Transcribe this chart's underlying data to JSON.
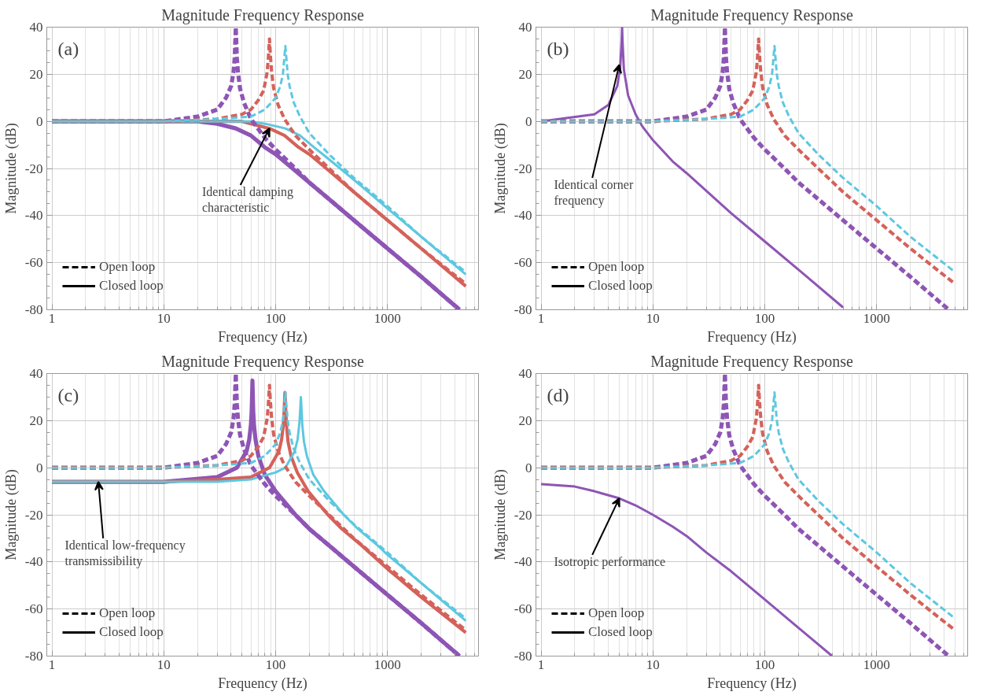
{
  "chart_data": [
    {
      "type": "line",
      "title": "Magnitude Frequency Response",
      "xlabel": "Frequency (Hz)",
      "ylabel": "Magnitude (dB)",
      "log": "x",
      "xlim": [
        0.9,
        6500
      ],
      "ylim": [
        -80,
        40
      ],
      "xticks": [
        1,
        10,
        100,
        1000
      ],
      "yticks": [
        -80,
        -60,
        -40,
        -20,
        0,
        20,
        40
      ],
      "grid": true,
      "legend": "bottom left",
      "annotations": [
        "(a)",
        {
          "text": "Identical damping\ncharacteristic",
          "x": 88,
          "y": -3
        }
      ],
      "series": [
        {
          "color": "#8e55b5",
          "line_style": "solid",
          "x": [
            1,
            10,
            20,
            30,
            44,
            60,
            80,
            100,
            150,
            200,
            300,
            500,
            1000,
            2000,
            4400
          ],
          "values": [
            0,
            0,
            0,
            -1,
            -3,
            -6,
            -11,
            -14,
            -21,
            -26,
            -33,
            -42,
            -54,
            -66,
            -80
          ]
        },
        {
          "color": "#d4625a",
          "line_style": "solid",
          "x": [
            1,
            10,
            30,
            50,
            60,
            88,
            120,
            160,
            200,
            300,
            500,
            1000,
            2000,
            5000
          ],
          "values": [
            0,
            0,
            0,
            0,
            -1,
            -3,
            -6,
            -11,
            -14,
            -21,
            -30,
            -42,
            -54,
            -70
          ]
        },
        {
          "color": "#5cc8e0",
          "line_style": "solid",
          "x": [
            1,
            10,
            30,
            60,
            80,
            122,
            165,
            220,
            280,
            400,
            600,
            1000,
            2000,
            5000
          ],
          "values": [
            0,
            0,
            0,
            0,
            -1,
            -3,
            -6,
            -11,
            -15,
            -21,
            -28,
            -37,
            -49,
            -65
          ]
        },
        {
          "color": "#8e55b5",
          "line_style": "dashed",
          "x": [
            1,
            10,
            20,
            30,
            36,
            40,
            42,
            43,
            44,
            45,
            46,
            48,
            52,
            60,
            80,
            100,
            150,
            200,
            300,
            500,
            1000,
            2000,
            4400
          ],
          "values": [
            0,
            0,
            2,
            5,
            10,
            15,
            21,
            27,
            40,
            27,
            21,
            14,
            8,
            1,
            -7,
            -12,
            -20,
            -26,
            -33,
            -42,
            -54,
            -66,
            -80
          ]
        },
        {
          "color": "#d4625a",
          "line_style": "dashed",
          "x": [
            1,
            10,
            30,
            50,
            60,
            70,
            78,
            84,
            86,
            88,
            90,
            92,
            96,
            105,
            120,
            150,
            200,
            300,
            500,
            1000,
            2000,
            5000
          ],
          "values": [
            0,
            0,
            1,
            3,
            5,
            9,
            13,
            21,
            27,
            35,
            27,
            21,
            14,
            7,
            1,
            -6,
            -12,
            -20,
            -30,
            -42,
            -54,
            -69
          ]
        },
        {
          "color": "#5cc8e0",
          "line_style": "dashed",
          "x": [
            1,
            10,
            30,
            60,
            80,
            100,
            110,
            116,
            119,
            122,
            125,
            128,
            133,
            145,
            165,
            200,
            300,
            500,
            1000,
            2000,
            5000
          ],
          "values": [
            0,
            0,
            1,
            2,
            5,
            10,
            15,
            20,
            26,
            32,
            26,
            20,
            15,
            8,
            2,
            -5,
            -14,
            -24,
            -36,
            -49,
            -64
          ]
        },
        {
          "name": "Open loop",
          "color": "#000000",
          "line_style": "dashed"
        },
        {
          "name": "Closed loop",
          "color": "#000000",
          "line_style": "solid"
        }
      ]
    },
    {
      "type": "line",
      "title": "Magnitude Frequency Response",
      "xlabel": "Frequency (Hz)",
      "ylabel": "Magnitude (dB)",
      "log": "x",
      "xlim": [
        0.9,
        6500
      ],
      "ylim": [
        -80,
        40
      ],
      "xticks": [
        1,
        10,
        100,
        1000
      ],
      "yticks": [
        -80,
        -60,
        -40,
        -20,
        0,
        20,
        40
      ],
      "grid": true,
      "legend": "bottom left",
      "annotations": [
        "(b)",
        {
          "text": "Identical corner\nfrequency",
          "x": 5,
          "y": 24
        }
      ],
      "series": [
        {
          "color": "#8e55b5",
          "line_style": "solid",
          "x": [
            1,
            3,
            4,
            4.8,
            5.1,
            5.25,
            5.3,
            5.35,
            5.5,
            6,
            7,
            8,
            10,
            15,
            20,
            50,
            100,
            200,
            500
          ],
          "values": [
            0,
            3,
            7,
            15,
            23,
            34,
            40,
            34,
            22,
            11,
            3,
            -2,
            -8,
            -17,
            -22,
            -39,
            -51,
            -63,
            -79
          ]
        },
        {
          "color": "#8e55b5",
          "line_style": "dashed",
          "x": [
            1,
            10,
            20,
            30,
            36,
            40,
            42,
            43,
            44,
            45,
            46,
            48,
            52,
            60,
            80,
            100,
            150,
            200,
            300,
            500,
            1000,
            2000,
            4400
          ],
          "values": [
            0,
            0,
            2,
            5,
            10,
            15,
            21,
            27,
            40,
            27,
            21,
            14,
            8,
            1,
            -7,
            -12,
            -20,
            -26,
            -33,
            -42,
            -54,
            -66,
            -80
          ]
        },
        {
          "color": "#d4625a",
          "line_style": "dashed",
          "x": [
            1,
            10,
            30,
            50,
            60,
            70,
            78,
            84,
            86,
            88,
            90,
            92,
            96,
            105,
            120,
            150,
            200,
            300,
            500,
            1000,
            2000,
            5000
          ],
          "values": [
            0,
            0,
            1,
            3,
            5,
            9,
            13,
            21,
            27,
            35,
            27,
            21,
            14,
            7,
            1,
            -6,
            -12,
            -20,
            -30,
            -42,
            -54,
            -69
          ]
        },
        {
          "color": "#5cc8e0",
          "line_style": "dashed",
          "x": [
            1,
            10,
            30,
            60,
            80,
            100,
            110,
            116,
            119,
            122,
            125,
            128,
            133,
            145,
            165,
            200,
            300,
            500,
            1000,
            2000,
            5000
          ],
          "values": [
            0,
            0,
            1,
            2,
            5,
            10,
            15,
            20,
            26,
            32,
            26,
            20,
            15,
            8,
            2,
            -5,
            -14,
            -24,
            -36,
            -49,
            -64
          ]
        },
        {
          "name": "Open loop",
          "color": "#000000",
          "line_style": "dashed"
        },
        {
          "name": "Closed loop",
          "color": "#000000",
          "line_style": "solid"
        }
      ]
    },
    {
      "type": "line",
      "title": "Magnitude Frequency Response",
      "xlabel": "Frequency (Hz)",
      "ylabel": "Magnitude (dB)",
      "log": "x",
      "xlim": [
        0.9,
        6500
      ],
      "ylim": [
        -80,
        40
      ],
      "xticks": [
        1,
        10,
        100,
        1000
      ],
      "yticks": [
        -80,
        -60,
        -40,
        -20,
        0,
        20,
        40
      ],
      "grid": true,
      "legend": "bottom left",
      "annotations": [
        "(c)",
        {
          "text": "Identical low-frequency\ntransmissibility",
          "x": 2.6,
          "y": -6
        }
      ],
      "series": [
        {
          "color": "#8e55b5",
          "line_style": "solid",
          "x": [
            1,
            10,
            30,
            45,
            55,
            58,
            60,
            61,
            62,
            63,
            64,
            66,
            70,
            80,
            100,
            150,
            200,
            300,
            500,
            1000,
            2000,
            4400
          ],
          "values": [
            -6,
            -6,
            -4,
            0,
            7,
            12,
            18,
            24,
            37,
            24,
            18,
            12,
            5,
            -3,
            -10,
            -20,
            -26,
            -33,
            -42,
            -54,
            -66,
            -80
          ]
        },
        {
          "color": "#d4625a",
          "line_style": "solid",
          "x": [
            1,
            10,
            30,
            60,
            88,
            107,
            113,
            117,
            119,
            121,
            123,
            125,
            129,
            137,
            156,
            195,
            293,
            391,
            586,
            1000,
            2000,
            5000
          ],
          "values": [
            -6,
            -6,
            -5,
            -4,
            0,
            7,
            12,
            18,
            24,
            32,
            24,
            18,
            11,
            5,
            -2,
            -10,
            -20,
            -26,
            -33,
            -43,
            -55,
            -70
          ]
        },
        {
          "color": "#5cc8e0",
          "line_style": "solid",
          "x": [
            1,
            10,
            30,
            60,
            100,
            122,
            148,
            157,
            163,
            165,
            168,
            171,
            173,
            179,
            190,
            217,
            271,
            406,
            543,
            814,
            1000,
            2000,
            5000
          ],
          "values": [
            -6,
            -6,
            -6,
            -5,
            -2,
            0,
            7,
            12,
            19,
            23,
            30,
            23,
            18,
            11,
            5,
            -3,
            -10,
            -20,
            -26,
            -33,
            -37,
            -49,
            -65
          ]
        },
        {
          "color": "#8e55b5",
          "line_style": "dashed",
          "x": [
            1,
            10,
            20,
            30,
            36,
            40,
            42,
            43,
            44,
            45,
            46,
            48,
            52,
            60,
            80,
            100,
            150,
            200,
            300,
            500,
            1000,
            2000,
            4400
          ],
          "values": [
            0,
            0,
            2,
            5,
            10,
            15,
            21,
            27,
            40,
            27,
            21,
            14,
            8,
            1,
            -7,
            -12,
            -20,
            -26,
            -33,
            -42,
            -54,
            -66,
            -80
          ]
        },
        {
          "color": "#d4625a",
          "line_style": "dashed",
          "x": [
            1,
            10,
            30,
            50,
            60,
            70,
            78,
            84,
            86,
            88,
            90,
            92,
            96,
            105,
            120,
            150,
            200,
            300,
            500,
            1000,
            2000,
            5000
          ],
          "values": [
            0,
            0,
            1,
            3,
            5,
            9,
            13,
            21,
            27,
            35,
            27,
            21,
            14,
            7,
            1,
            -6,
            -12,
            -20,
            -30,
            -42,
            -54,
            -69
          ]
        },
        {
          "color": "#5cc8e0",
          "line_style": "dashed",
          "x": [
            1,
            10,
            30,
            60,
            80,
            100,
            110,
            116,
            119,
            122,
            125,
            128,
            133,
            145,
            165,
            200,
            300,
            500,
            1000,
            2000,
            5000
          ],
          "values": [
            0,
            0,
            1,
            2,
            5,
            10,
            15,
            20,
            26,
            32,
            26,
            20,
            15,
            8,
            2,
            -5,
            -14,
            -24,
            -36,
            -49,
            -64
          ]
        },
        {
          "name": "Open loop",
          "color": "#000000",
          "line_style": "dashed"
        },
        {
          "name": "Closed loop",
          "color": "#000000",
          "line_style": "solid"
        }
      ]
    },
    {
      "type": "line",
      "title": "Magnitude Frequency Response",
      "xlabel": "Frequency (Hz)",
      "ylabel": "Magnitude (dB)",
      "log": "x",
      "xlim": [
        0.9,
        6500
      ],
      "ylim": [
        -80,
        40
      ],
      "xticks": [
        1,
        10,
        100,
        1000
      ],
      "yticks": [
        -80,
        -60,
        -40,
        -20,
        0,
        20,
        40
      ],
      "grid": true,
      "legend": "bottom left",
      "annotations": [
        "(d)",
        {
          "text": "Isotropic performance",
          "x": 5,
          "y": -13
        }
      ],
      "series": [
        {
          "color": "#8e55b5",
          "line_style": "solid",
          "x": [
            1,
            2,
            3,
            5,
            7,
            10,
            15,
            20,
            30,
            50,
            100,
            200,
            400
          ],
          "values": [
            -7,
            -8,
            -10,
            -13,
            -16,
            -20,
            -25,
            -29,
            -36,
            -44,
            -56,
            -68,
            -80
          ]
        },
        {
          "color": "#8e55b5",
          "line_style": "dashed",
          "x": [
            1,
            10,
            20,
            30,
            36,
            40,
            42,
            43,
            44,
            45,
            46,
            48,
            52,
            60,
            80,
            100,
            150,
            200,
            300,
            500,
            1000,
            2000,
            4400
          ],
          "values": [
            0,
            0,
            2,
            5,
            10,
            15,
            21,
            27,
            40,
            27,
            21,
            14,
            8,
            1,
            -7,
            -12,
            -20,
            -26,
            -33,
            -42,
            -54,
            -66,
            -80
          ]
        },
        {
          "color": "#d4625a",
          "line_style": "dashed",
          "x": [
            1,
            10,
            30,
            50,
            60,
            70,
            78,
            84,
            86,
            88,
            90,
            92,
            96,
            105,
            120,
            150,
            200,
            300,
            500,
            1000,
            2000,
            5000
          ],
          "values": [
            0,
            0,
            1,
            3,
            5,
            9,
            13,
            21,
            27,
            35,
            27,
            21,
            14,
            7,
            1,
            -6,
            -12,
            -20,
            -30,
            -42,
            -54,
            -69
          ]
        },
        {
          "color": "#5cc8e0",
          "line_style": "dashed",
          "x": [
            1,
            10,
            30,
            60,
            80,
            100,
            110,
            116,
            119,
            122,
            125,
            128,
            133,
            145,
            165,
            200,
            300,
            500,
            1000,
            2000,
            5000
          ],
          "values": [
            0,
            0,
            1,
            2,
            5,
            10,
            15,
            20,
            26,
            32,
            26,
            20,
            15,
            8,
            2,
            -5,
            -14,
            -24,
            -36,
            -49,
            -64
          ]
        },
        {
          "name": "Open loop",
          "color": "#000000",
          "line_style": "dashed"
        },
        {
          "name": "Closed loop",
          "color": "#000000",
          "line_style": "solid"
        }
      ]
    }
  ]
}
